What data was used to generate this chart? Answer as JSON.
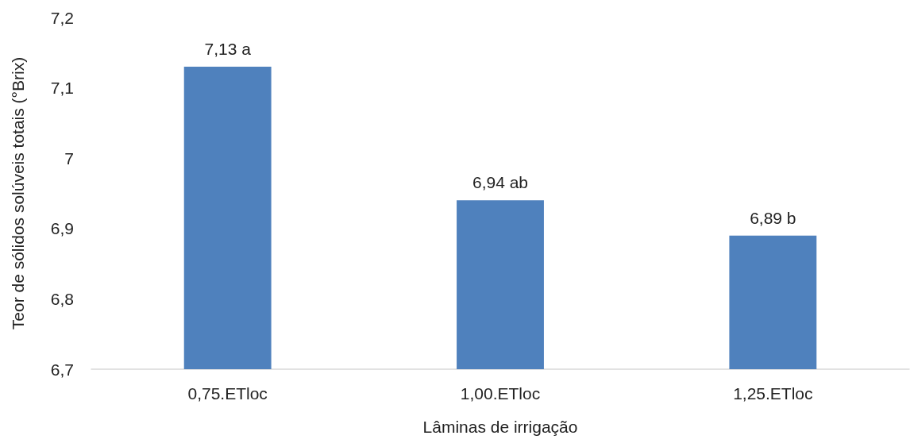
{
  "chart_data": {
    "type": "bar",
    "xlabel": "Lâminas de irrigação",
    "ylabel": "Teor de sólidos solúveis totais (°Brix)",
    "categories": [
      "0,75.ETloc",
      "1,00.ETloc",
      "1,25.ETloc"
    ],
    "values": [
      7.13,
      6.94,
      6.89
    ],
    "color": "#4f81bd",
    "value_labels": [
      "7,13 a",
      "6,94 ab",
      "6,89 b"
    ],
    "ylim": [
      6.7,
      7.2
    ],
    "yticks": [
      {
        "value": 6.7,
        "label": "6,7"
      },
      {
        "value": 6.8,
        "label": "6,8"
      },
      {
        "value": 6.9,
        "label": "6,9"
      },
      7,
      {
        "value": 7.1,
        "label": "7,1"
      },
      {
        "value": 7.2,
        "label": "7,2"
      }
    ],
    "grid": false
  }
}
